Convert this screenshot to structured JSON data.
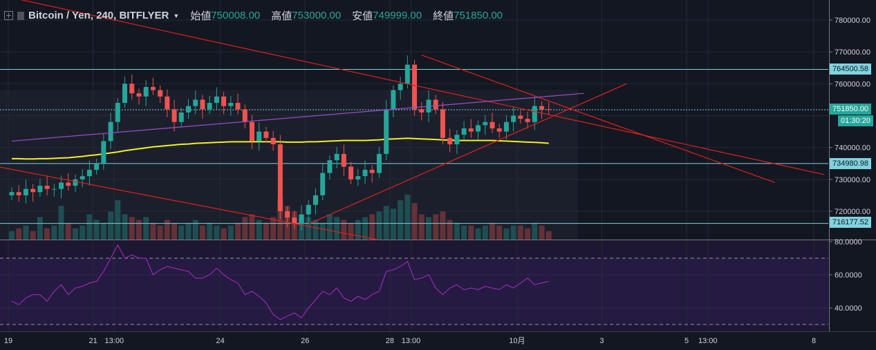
{
  "header": {
    "symbol": "Bitcoin / Yen, 240, BITFLYER",
    "open_label": "始値",
    "open": "750008.00",
    "high_label": "高値",
    "high": "753000.00",
    "low_label": "安値",
    "low": "749999.00",
    "close_label": "終値",
    "close": "751850.00"
  },
  "price_tags": {
    "h1": "764500.58",
    "last": "751850.00",
    "countdown": "01:30:20",
    "h2": "734980.98",
    "h3": "716177.52"
  },
  "colors": {
    "up": "#26a69a",
    "down": "#ef5350",
    "bg": "#131722",
    "grid": "#252a36",
    "hline": "#7fd3de",
    "trend": "#e0201b",
    "ma": "#f5f01e",
    "rsi": "#9c27b0"
  },
  "chart_data": {
    "type": "candlestick",
    "title": "Bitcoin / Yen, 240, BITFLYER",
    "price_ticks": [
      "780000.00",
      "770000.00",
      "760000.00",
      "740000.00",
      "730000.00",
      "720000.00"
    ],
    "price_tick_values": [
      780000,
      770000,
      760000,
      740000,
      730000,
      720000
    ],
    "ylim": [
      714000,
      783000
    ],
    "x_ticks": [
      "19",
      "21",
      "13:00",
      "24",
      "26",
      "28",
      "13:00",
      "10月",
      "3",
      "5",
      "13:00",
      "8"
    ],
    "x_tick_candle_index": [
      0,
      12,
      15,
      30,
      42,
      54,
      57,
      72,
      84,
      96,
      99,
      114
    ],
    "closes_k": [
      726,
      725,
      727,
      726,
      728,
      727,
      727,
      729,
      728,
      730,
      731,
      733,
      735,
      742,
      748,
      754,
      760,
      757,
      756,
      759,
      758,
      756,
      752,
      748,
      751,
      753,
      755,
      752,
      754,
      756,
      753,
      754,
      752,
      748,
      742,
      745,
      743,
      741,
      720,
      718,
      716,
      719,
      722,
      725,
      732,
      736,
      738,
      734,
      730,
      731,
      733,
      732,
      738,
      752,
      758,
      760,
      766,
      752,
      751,
      755,
      752,
      743,
      741,
      744,
      746,
      745,
      747,
      748,
      746,
      745,
      748,
      750,
      749,
      748,
      753,
      752,
      751.85
    ],
    "volume": [
      3,
      4,
      5,
      3,
      8,
      4,
      5,
      12,
      6,
      4,
      5,
      9,
      7,
      6,
      10,
      14,
      9,
      8,
      7,
      8,
      6,
      5,
      7,
      6,
      5,
      6,
      7,
      5,
      6,
      5,
      4,
      5,
      6,
      8,
      9,
      7,
      6,
      8,
      15,
      12,
      10,
      9,
      8,
      7,
      6,
      9,
      8,
      7,
      6,
      7,
      8,
      9,
      10,
      12,
      11,
      14,
      16,
      13,
      9,
      8,
      9,
      10,
      7,
      6,
      5,
      5,
      4,
      5,
      6,
      5,
      4,
      5,
      5,
      4,
      6,
      5,
      3
    ],
    "ma_k": [
      736.5,
      736.5,
      736.4,
      736.4,
      736.5,
      736.5,
      736.6,
      736.7,
      736.8,
      737,
      737.2,
      737.5,
      737.7,
      738,
      738.3,
      738.6,
      739,
      739.3,
      739.6,
      739.9,
      740.2,
      740.4,
      740.6,
      740.8,
      741,
      741.1,
      741.3,
      741.4,
      741.5,
      741.6,
      741.7,
      741.8,
      741.8,
      741.8,
      741.8,
      741.8,
      741.8,
      741.8,
      741.8,
      741.7,
      741.7,
      741.7,
      741.8,
      741.8,
      741.9,
      742,
      742.1,
      742.2,
      742.2,
      742.2,
      742.2,
      742.3,
      742.4,
      742.6,
      742.7,
      742.8,
      742.9,
      742.8,
      742.7,
      742.6,
      742.5,
      742.4,
      742.3,
      742.2,
      742.2,
      742.2,
      742.2,
      742.2,
      742.2,
      742.1,
      742,
      741.9,
      741.8,
      741.7,
      741.6,
      741.5,
      741.3
    ],
    "horizontal_levels": [
      764500.58,
      751850,
      734980.98,
      716177.52
    ],
    "rsi": {
      "ticks": [
        "80.0000",
        "60.0000",
        "40.0000"
      ],
      "tick_values": [
        80,
        60,
        40
      ],
      "bands": [
        70,
        30
      ],
      "values": [
        44,
        42,
        46,
        48,
        48,
        44,
        50,
        54,
        48,
        52,
        53,
        55,
        56,
        62,
        70,
        78,
        70,
        72,
        70,
        70,
        60,
        63,
        65,
        64,
        63,
        62,
        58,
        58,
        60,
        64,
        60,
        57,
        55,
        48,
        50,
        47,
        43,
        36,
        33,
        35,
        37,
        34,
        40,
        45,
        50,
        48,
        52,
        46,
        44,
        47,
        45,
        48,
        50,
        62,
        63,
        65,
        68,
        57,
        58,
        60,
        52,
        48,
        52,
        54,
        51,
        52,
        51,
        53,
        52,
        51,
        54,
        52,
        55,
        58,
        54,
        55,
        56
      ]
    },
    "trendlines": [
      {
        "from": [
          0,
          787000
        ],
        "to": [
          115,
          731500
        ]
      },
      {
        "from": [
          58,
          769000
        ],
        "to": [
          108,
          729000
        ]
      },
      {
        "from": [
          -2,
          734000
        ],
        "to": [
          52,
          711000
        ]
      },
      {
        "from": [
          42,
          716000
        ],
        "to": [
          87,
          760000
        ]
      },
      {
        "from": [
          0,
          742000
        ],
        "to": [
          81,
          757000
        ]
      }
    ]
  }
}
